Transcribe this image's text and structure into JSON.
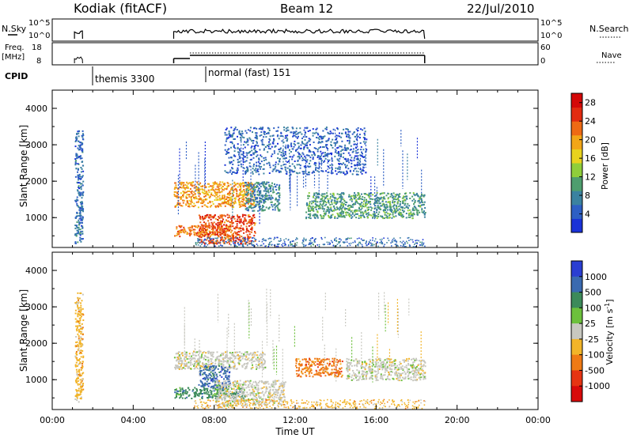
{
  "header": {
    "station": "Kodiak (fitACF)",
    "beam": "Beam 12",
    "date": "22/Jul/2010"
  },
  "status_panels": {
    "nsky_label": "N.Sky",
    "nsky_ticks": [
      "10^5",
      "10^0"
    ],
    "nsky_right_ticks": [
      "10^5",
      "10^0"
    ],
    "nsearch_label": "N.Search",
    "freq_label": "Freq.",
    "freq_unit": "[MHz]",
    "freq_ticks": [
      "18",
      "8"
    ],
    "nave_label": "Nave",
    "nave_ticks": [
      "60",
      "0"
    ],
    "cpid_label": "CPID",
    "cpid_modes": [
      "themis 3300",
      "normal (fast) 151"
    ]
  },
  "colors": {
    "power_scale": [
      "#1a32d8",
      "#2e5fc4",
      "#3b82a0",
      "#4e9e6e",
      "#8fce3a",
      "#e8d21e",
      "#f2a618",
      "#ee6a14",
      "#e22b10",
      "#d40808"
    ],
    "velocity_scale": [
      "#2a3ed2",
      "#3a6ab0",
      "#3c8a5a",
      "#6cc03c",
      "#c8c8c0",
      "#f2b428",
      "#ef7a14",
      "#e63412",
      "#d80a0a"
    ]
  },
  "chart_data": [
    {
      "type": "heatmap",
      "title": "",
      "xlabel": "",
      "ylabel": "Slant Range [km]",
      "xlim": [
        "00:00",
        "24:00"
      ],
      "ylim": [
        180,
        4500
      ],
      "x_ticks": [
        "00:00",
        "04:00",
        "08:00",
        "12:00",
        "16:00",
        "20:00",
        "00:00"
      ],
      "y_ticks": [
        "1000",
        "2000",
        "3000",
        "4000"
      ],
      "colorbar_label": "Power [dB]",
      "colorbar_ticks": [
        "4",
        "8",
        "12",
        "16",
        "20",
        "24",
        "28"
      ],
      "colorbar_range": [
        0,
        30
      ],
      "regions": [
        {
          "t": [
            1.1,
            1.5
          ],
          "r": [
            300,
            3400
          ],
          "value": 6
        },
        {
          "t": [
            6.0,
            10.0
          ],
          "r": [
            1300,
            2000
          ],
          "value": 20
        },
        {
          "t": [
            6.0,
            8.8
          ],
          "r": [
            500,
            800
          ],
          "value": 22
        },
        {
          "t": [
            7.2,
            10.0
          ],
          "r": [
            300,
            1100
          ],
          "value": 24
        },
        {
          "t": [
            9.5,
            11.2
          ],
          "r": [
            1200,
            2000
          ],
          "value": 8
        },
        {
          "t": [
            12.5,
            18.4
          ],
          "r": [
            1000,
            1700
          ],
          "value": 10
        },
        {
          "t": [
            8.5,
            15.5
          ],
          "r": [
            2200,
            3500
          ],
          "value": 5
        }
      ]
    },
    {
      "type": "heatmap",
      "title": "",
      "xlabel": "Time UT",
      "ylabel": "Slant Range [km]",
      "xlim": [
        "00:00",
        "24:00"
      ],
      "ylim": [
        180,
        4500
      ],
      "x_ticks": [
        "00:00",
        "04:00",
        "08:00",
        "12:00",
        "16:00",
        "20:00",
        "00:00"
      ],
      "y_ticks": [
        "1000",
        "2000",
        "3000",
        "4000"
      ],
      "colorbar_label": "Velocity [m s^-1]",
      "colorbar_ticks": [
        "1000",
        "500",
        "100",
        "25",
        "-25",
        "-100",
        "-500",
        "-1000"
      ],
      "regions": [
        {
          "t": [
            1.1,
            1.5
          ],
          "r": [
            400,
            3400
          ],
          "value": "-100"
        },
        {
          "t": [
            6.0,
            10.5
          ],
          "r": [
            1300,
            1800
          ],
          "value": "25"
        },
        {
          "t": [
            7.2,
            8.8
          ],
          "r": [
            800,
            1400
          ],
          "value": "500"
        },
        {
          "t": [
            6.0,
            9.5
          ],
          "r": [
            500,
            800
          ],
          "value": "100"
        },
        {
          "t": [
            12.0,
            14.3
          ],
          "r": [
            1100,
            1600
          ],
          "value": "-500"
        },
        {
          "t": [
            14.5,
            18.4
          ],
          "r": [
            1000,
            1600
          ],
          "value": "25"
        },
        {
          "t": [
            8.0,
            11.5
          ],
          "r": [
            300,
            1000
          ],
          "value": "-25"
        }
      ]
    }
  ]
}
